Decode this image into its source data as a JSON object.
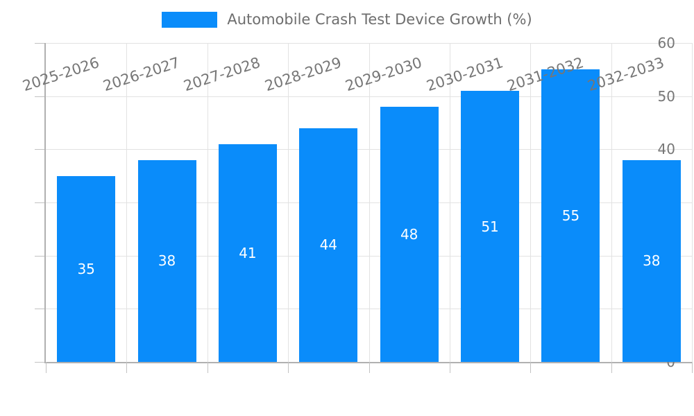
{
  "chart_data": {
    "type": "bar",
    "title": "Automobile Crash Test Device Growth (%)",
    "legend_label": "Automobile Crash Test Device Growth (%)",
    "legend_position": "top-center",
    "categories": [
      "2025-2026",
      "2026-2027",
      "2027-2028",
      "2028-2029",
      "2029-2030",
      "2030-2031",
      "2031-2032",
      "2032-2033"
    ],
    "values": [
      35,
      38,
      41,
      44,
      48,
      51,
      55,
      38
    ],
    "xlabel": "",
    "ylabel": "",
    "ylim": [
      0,
      60
    ],
    "yticks": [
      0,
      10,
      20,
      30,
      40,
      50,
      60
    ],
    "grid": true,
    "value_labels_shown": true,
    "colors": {
      "bar": "#0a8cfa",
      "value_label": "#ffffff",
      "grid": "#e2e2e2",
      "axis": "#b0b0b0",
      "tick_label": "#767676",
      "background": "#ffffff"
    }
  }
}
